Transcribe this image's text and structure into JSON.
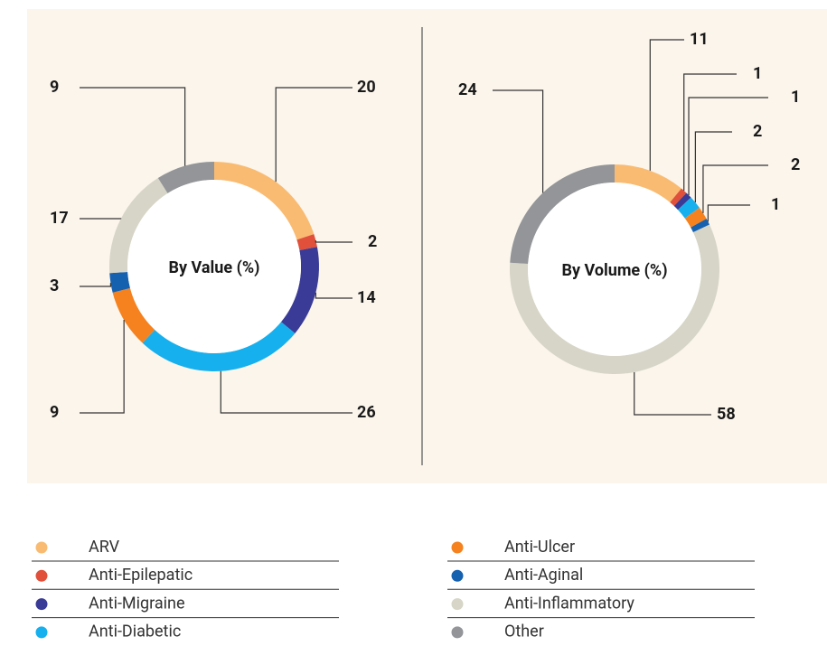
{
  "legend": {
    "items": [
      "ARV",
      "Anti-Epilepatic",
      "Anti-Migraine",
      "Anti-Diabetic",
      "Anti-Ulcer",
      "Anti-Aginal",
      "Anti-Inflammatory",
      "Other"
    ],
    "colors": [
      "#f9bb72",
      "#e0503a",
      "#3a3b96",
      "#16b0ee",
      "#f5821f",
      "#1660b0",
      "#d6d5c7",
      "#939598"
    ]
  },
  "chart_data": [
    {
      "type": "donut",
      "title": "By Value (%)",
      "values": [
        20,
        2,
        14,
        26,
        9,
        3,
        17,
        9
      ]
    },
    {
      "type": "donut",
      "title": "By Volume (%)",
      "values": [
        11,
        1,
        1,
        2,
        2,
        1,
        58,
        24
      ]
    }
  ]
}
